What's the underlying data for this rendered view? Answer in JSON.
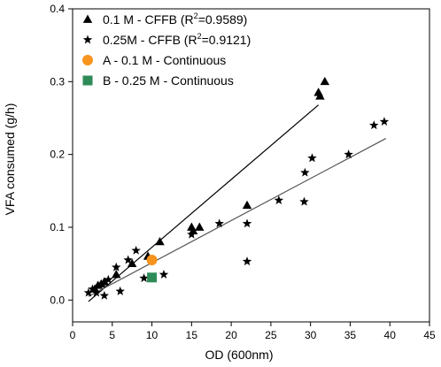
{
  "chart_data": {
    "type": "scatter",
    "xlabel": "OD (600nm)",
    "ylabel": "VFA consumed (g/h)",
    "xlim": [
      0,
      45
    ],
    "ylim": [
      -0.03,
      0.4
    ],
    "xticks": [
      0,
      5,
      10,
      15,
      20,
      25,
      30,
      35,
      40,
      45
    ],
    "yticks": [
      0.0,
      0.1,
      0.2,
      0.3,
      0.4
    ],
    "ytick_labels": [
      "0.0",
      "0.1",
      "0.2",
      "0.3",
      "0.4"
    ],
    "legend_position": "top-left",
    "grid": false,
    "series": [
      {
        "key": "s1",
        "legend_main": "0.1 M  - CFFB (R",
        "legend_sup": "2",
        "legend_tail": "=0.9589)",
        "marker": "triangle",
        "color": "#000000",
        "points": [
          {
            "x": 2.8,
            "y": 0.015
          },
          {
            "x": 3.2,
            "y": 0.02
          },
          {
            "x": 3.6,
            "y": 0.022
          },
          {
            "x": 4.0,
            "y": 0.025
          },
          {
            "x": 5.5,
            "y": 0.035
          },
          {
            "x": 7.5,
            "y": 0.05
          },
          {
            "x": 9.5,
            "y": 0.06
          },
          {
            "x": 11.0,
            "y": 0.08
          },
          {
            "x": 15.0,
            "y": 0.1
          },
          {
            "x": 15.2,
            "y": 0.095
          },
          {
            "x": 16.0,
            "y": 0.1
          },
          {
            "x": 22.0,
            "y": 0.13
          },
          {
            "x": 31.0,
            "y": 0.285
          },
          {
            "x": 31.2,
            "y": 0.28
          },
          {
            "x": 31.8,
            "y": 0.3
          }
        ]
      },
      {
        "key": "s2",
        "legend_main": "0.25M  - CFFB (R",
        "legend_sup": "2",
        "legend_tail": "=0.9121)",
        "marker": "star",
        "color": "#000000",
        "points": [
          {
            "x": 2.0,
            "y": 0.01
          },
          {
            "x": 2.5,
            "y": 0.015
          },
          {
            "x": 3.0,
            "y": 0.01
          },
          {
            "x": 4.0,
            "y": 0.006
          },
          {
            "x": 4.5,
            "y": 0.028
          },
          {
            "x": 5.5,
            "y": 0.045
          },
          {
            "x": 6.0,
            "y": 0.012
          },
          {
            "x": 7.0,
            "y": 0.055
          },
          {
            "x": 8.0,
            "y": 0.068
          },
          {
            "x": 9.0,
            "y": 0.03
          },
          {
            "x": 11.5,
            "y": 0.035
          },
          {
            "x": 15.0,
            "y": 0.09
          },
          {
            "x": 18.5,
            "y": 0.105
          },
          {
            "x": 22.0,
            "y": 0.105
          },
          {
            "x": 22.0,
            "y": 0.053
          },
          {
            "x": 26.0,
            "y": 0.137
          },
          {
            "x": 29.2,
            "y": 0.135
          },
          {
            "x": 29.3,
            "y": 0.175
          },
          {
            "x": 30.2,
            "y": 0.195
          },
          {
            "x": 34.8,
            "y": 0.2
          },
          {
            "x": 38.0,
            "y": 0.24
          },
          {
            "x": 39.3,
            "y": 0.245
          }
        ]
      },
      {
        "key": "s3",
        "legend_main": "A - 0.1 M - Continuous",
        "marker": "circle",
        "color": "#f7941d",
        "points": [
          {
            "x": 10.0,
            "y": 0.055
          }
        ]
      },
      {
        "key": "s4",
        "legend_main": "B - 0.25 M - Continuous",
        "marker": "square",
        "color": "#2e8b57",
        "points": [
          {
            "x": 10.0,
            "y": 0.031
          }
        ]
      }
    ],
    "fit_lines": [
      {
        "series": "s1",
        "x": [
          2.0,
          31.0
        ],
        "y": [
          -0.002,
          0.268
        ],
        "color": "#000000"
      },
      {
        "series": "s2",
        "x": [
          2.0,
          39.5
        ],
        "y": [
          0.005,
          0.222
        ],
        "color": "#555555"
      }
    ]
  }
}
